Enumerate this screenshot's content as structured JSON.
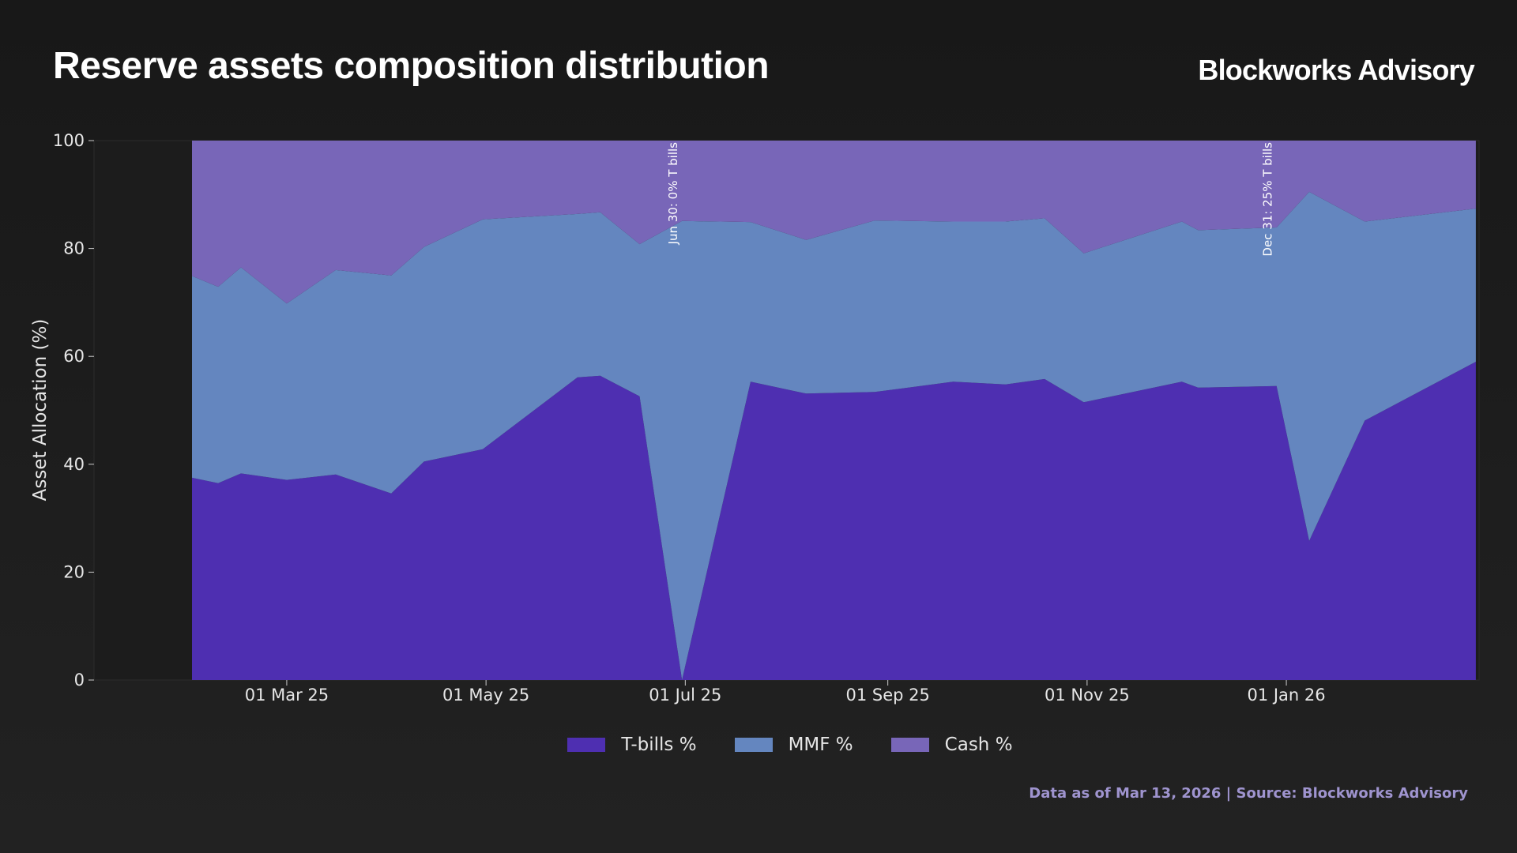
{
  "header": {
    "title": "Reserve assets composition distribution",
    "brand": "Blockworks Advisory"
  },
  "footer": {
    "source": "Data as of Mar 13, 2026 | Source: Blockworks Advisory"
  },
  "chart_data": {
    "type": "area",
    "stacked": true,
    "title": "Reserve assets composition distribution",
    "xlabel": "",
    "ylabel": "Asset Allocation (%)",
    "ylim": [
      0,
      100
    ],
    "yticks": [
      0,
      20,
      40,
      60,
      80,
      100
    ],
    "xlim": [
      "2025-01-01",
      "2026-03-01"
    ],
    "xticks": [
      {
        "date": "2025-03-01",
        "label": "01 Mar 25"
      },
      {
        "date": "2025-05-01",
        "label": "01 May 25"
      },
      {
        "date": "2025-07-01",
        "label": "01 Jul 25"
      },
      {
        "date": "2025-09-01",
        "label": "01 Sep 25"
      },
      {
        "date": "2025-11-01",
        "label": "01 Nov 25"
      },
      {
        "date": "2026-01-01",
        "label": "01 Jan 26"
      }
    ],
    "grid": false,
    "legend_position": "bottom-center",
    "x": [
      "2025-01-31",
      "2025-02-08",
      "2025-02-15",
      "2025-03-01",
      "2025-03-16",
      "2025-04-02",
      "2025-04-12",
      "2025-04-30",
      "2025-05-29",
      "2025-06-05",
      "2025-06-17",
      "2025-06-30",
      "2025-07-21",
      "2025-08-07",
      "2025-08-28",
      "2025-09-21",
      "2025-10-07",
      "2025-10-19",
      "2025-10-31",
      "2025-11-30",
      "2025-12-05",
      "2025-12-29",
      "2026-01-08",
      "2026-01-25",
      "2026-02-28"
    ],
    "series": [
      {
        "name": "T-bills %",
        "color": "#4e2fb1",
        "values": [
          37.5,
          36.5,
          38.3,
          37.1,
          38.1,
          34.6,
          40.5,
          42.8,
          56.1,
          56.4,
          52.6,
          0,
          55.3,
          53.1,
          53.4,
          55.3,
          54.8,
          55.8,
          51.5,
          55.3,
          54.2,
          54.5,
          25.8,
          48.1,
          59.0
        ]
      },
      {
        "name": "MMF %",
        "color": "#6486bf",
        "values": [
          37.4,
          36.4,
          38.2,
          32.7,
          37.9,
          40.4,
          39.8,
          42.6,
          30.3,
          30.3,
          28.2,
          85.1,
          29.6,
          28.5,
          31.8,
          29.7,
          30.2,
          29.8,
          27.6,
          29.7,
          29.2,
          29.4,
          64.7,
          36.9,
          28.4
        ]
      },
      {
        "name": "Cash %",
        "color": "#7866b8",
        "values": [
          25.1,
          27.1,
          23.5,
          30.2,
          24.0,
          25.0,
          19.7,
          14.6,
          13.6,
          13.3,
          19.2,
          14.9,
          15.1,
          18.4,
          14.8,
          15.0,
          15.0,
          14.4,
          20.9,
          15.0,
          16.6,
          16.1,
          9.5,
          15.0,
          12.6
        ]
      }
    ],
    "annotations": [
      {
        "date": "2025-06-30",
        "text": "Jun 30: 0% T bills"
      },
      {
        "date": "2025-12-29",
        "text": "Dec 31: 25% T bills"
      }
    ]
  }
}
